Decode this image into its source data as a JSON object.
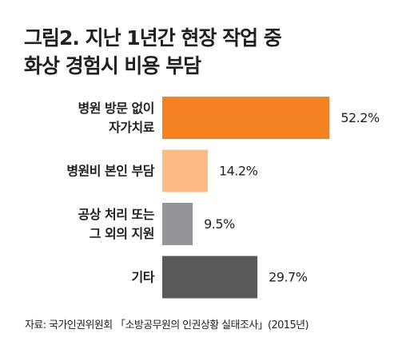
{
  "title_lines": [
    "그림2. 지난 1년간 현장 작업 중",
    "화상 경험시 비용 부담"
  ],
  "source": "자료: 국가인권위원회 「소방공무원의 인권상황 실태조사」(2015년)",
  "chart_data": {
    "type": "bar",
    "orientation": "horizontal",
    "categories": [
      [
        "병원 방문 없이",
        "자가치료"
      ],
      [
        "병원비 본인 부담"
      ],
      [
        "공상 처리 또는",
        "그 외의 지원"
      ],
      [
        "기타"
      ]
    ],
    "values": [
      52.2,
      14.2,
      9.5,
      29.7
    ],
    "value_labels": [
      "52.2%",
      "14.2%",
      "9.5%",
      "29.7%"
    ],
    "unit": "%",
    "colors": [
      "#f58220",
      "#fbbb82",
      "#939598",
      "#58595b"
    ],
    "xlim": [
      0,
      60
    ],
    "grid": false,
    "legend": "none"
  }
}
